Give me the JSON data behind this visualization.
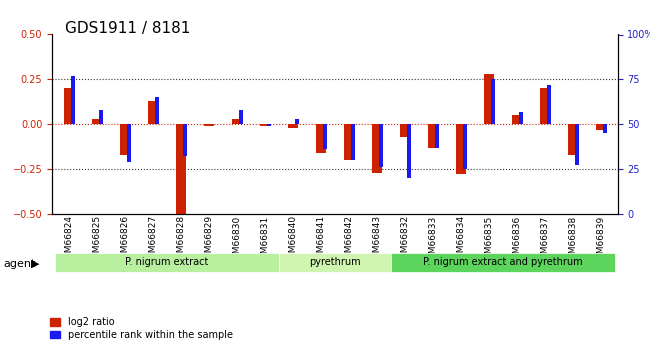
{
  "title": "GDS1911 / 8181",
  "samples": [
    "GSM66824",
    "GSM66825",
    "GSM66826",
    "GSM66827",
    "GSM66828",
    "GSM66829",
    "GSM66830",
    "GSM66831",
    "GSM66840",
    "GSM66841",
    "GSM66842",
    "GSM66843",
    "GSM66832",
    "GSM66833",
    "GSM66834",
    "GSM66835",
    "GSM66836",
    "GSM66837",
    "GSM66838",
    "GSM66839"
  ],
  "log2_ratio": [
    0.2,
    0.03,
    -0.17,
    0.13,
    -0.5,
    -0.01,
    0.03,
    -0.01,
    -0.02,
    -0.16,
    -0.2,
    -0.27,
    -0.07,
    -0.13,
    -0.28,
    0.28,
    0.05,
    0.2,
    -0.17,
    -0.03
  ],
  "pct_rank": [
    77,
    58,
    29,
    65,
    32,
    50,
    58,
    49,
    53,
    36,
    30,
    26,
    20,
    37,
    25,
    75,
    57,
    72,
    27,
    45
  ],
  "groups": [
    {
      "label": "P. nigrum extract",
      "start": 0,
      "end": 8,
      "color": "#90ee90"
    },
    {
      "label": "pyrethrum",
      "start": 8,
      "end": 12,
      "color": "#98fb98"
    },
    {
      "label": "P. nigrum extract and pyrethrum",
      "start": 12,
      "end": 20,
      "color": "#32cd32"
    }
  ],
  "ylim_left": [
    -0.5,
    0.5
  ],
  "ylim_right": [
    0,
    100
  ],
  "bar_color_red": "#cc2200",
  "bar_color_blue": "#1a1aee",
  "hline_color": "#cc2200",
  "dotted_color": "#333333",
  "bg_color": "#ffffff",
  "axis_left_color": "#cc2200",
  "axis_right_color": "#2222cc",
  "yticks_left": [
    -0.5,
    -0.25,
    0.0,
    0.25,
    0.5
  ],
  "yticks_right": [
    0,
    25,
    50,
    75,
    100
  ],
  "legend_red": "log2 ratio",
  "legend_blue": "percentile rank within the sample",
  "agent_label": "agent"
}
